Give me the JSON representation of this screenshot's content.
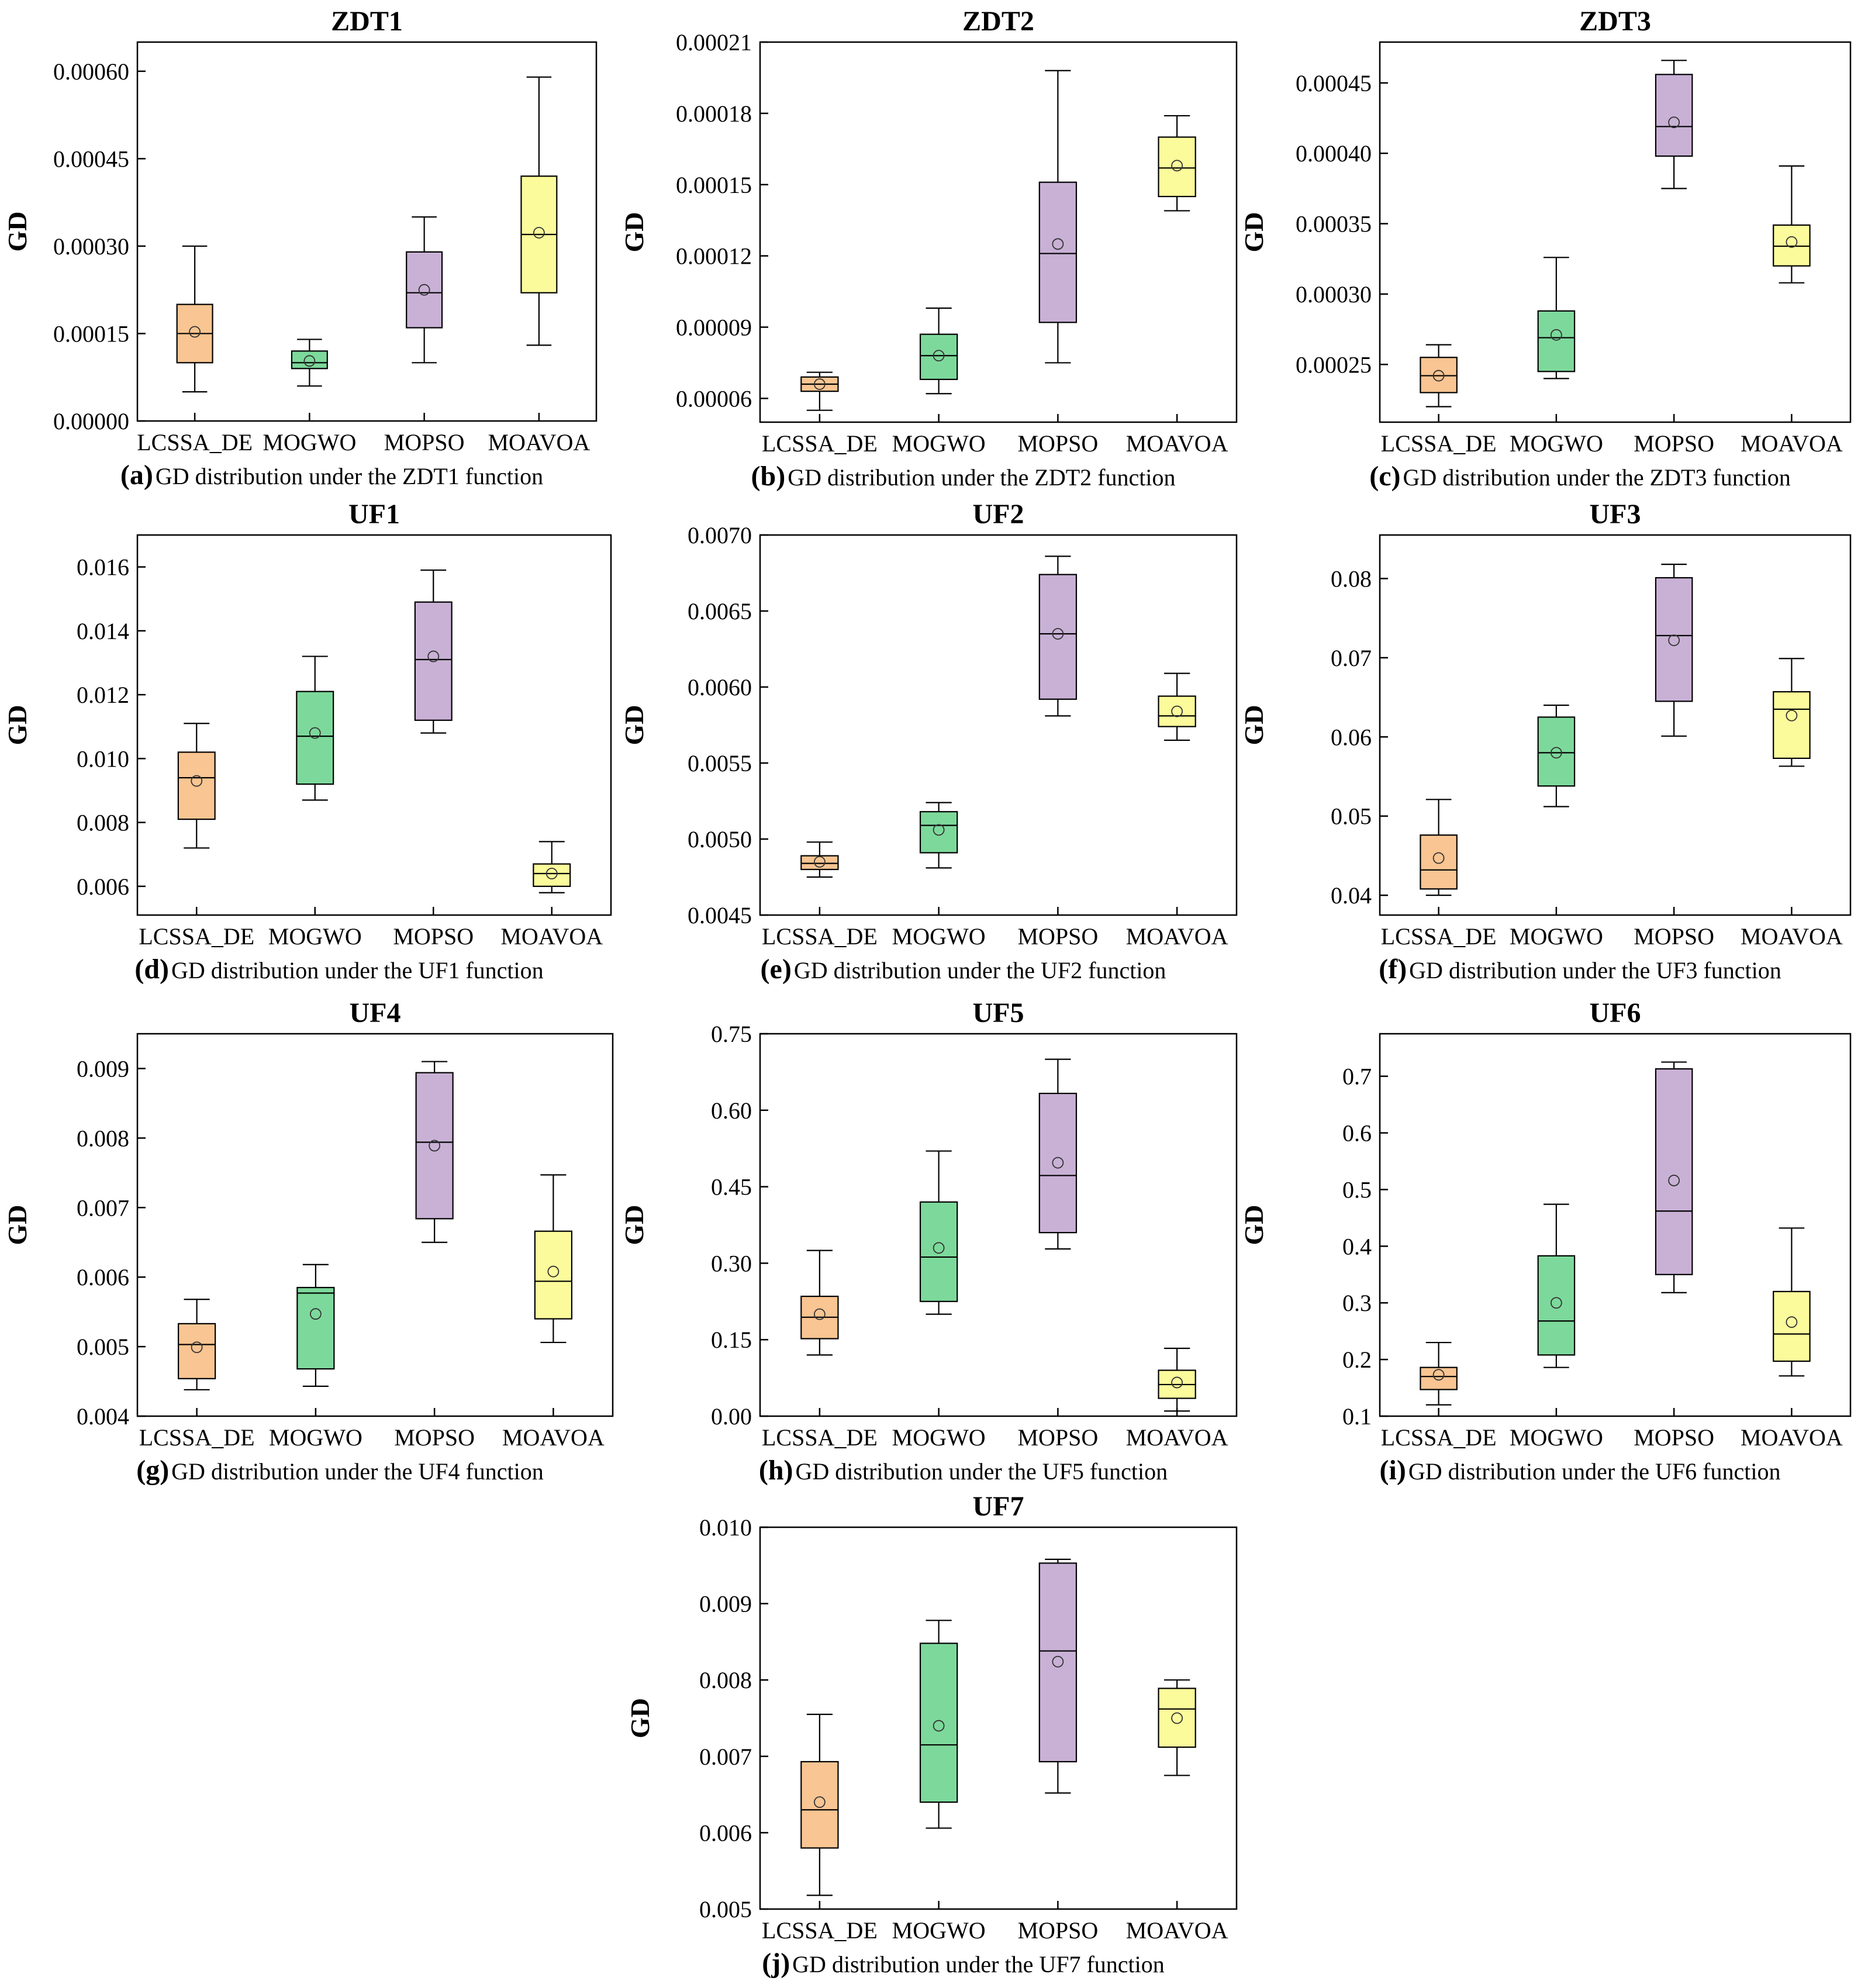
{
  "colors": {
    "LCSSA_DE": "#F9C592",
    "MOGWO": "#7DD99B",
    "MOPSO": "#C9B1D6",
    "MOAVOA": "#FBFB9C"
  },
  "chart_data": [
    {
      "type": "box",
      "title": "ZDT1",
      "ylabel": "GD",
      "caption_letter": "(a)",
      "caption_text": "GD distribution under the ZDT1 function",
      "categories": [
        "LCSSA_DE",
        "MOGWO",
        "MOPSO",
        "MOAVOA"
      ],
      "ylim": [
        0,
        0.00065
      ],
      "yticks": [
        0,
        0.00015,
        0.0003,
        0.00045,
        0.0006
      ],
      "ytick_labels": [
        "0.00000",
        "0.00015",
        "0.00030",
        "0.00045",
        "0.00060"
      ],
      "boxes": [
        {
          "min": 5e-05,
          "q1": 0.0001,
          "median": 0.00015,
          "q3": 0.0002,
          "max": 0.0003,
          "mean": 0.000153
        },
        {
          "min": 6e-05,
          "q1": 9e-05,
          "median": 0.0001,
          "q3": 0.00012,
          "max": 0.00014,
          "mean": 0.000103
        },
        {
          "min": 0.0001,
          "q1": 0.00016,
          "median": 0.00022,
          "q3": 0.00029,
          "max": 0.00035,
          "mean": 0.000225
        },
        {
          "min": 0.00013,
          "q1": 0.00022,
          "median": 0.00032,
          "q3": 0.00042,
          "max": 0.00059,
          "mean": 0.000323
        }
      ]
    },
    {
      "type": "box",
      "title": "ZDT2",
      "ylabel": "GD",
      "caption_letter": "(b)",
      "caption_text": "GD distribution under the ZDT2 function",
      "categories": [
        "LCSSA_DE",
        "MOGWO",
        "MOPSO",
        "MOAVOA"
      ],
      "ylim": [
        5e-05,
        0.00021
      ],
      "yticks": [
        6e-05,
        9e-05,
        0.00012,
        0.00015,
        0.00018,
        0.00021
      ],
      "ytick_labels": [
        "0.00006",
        "0.00009",
        "0.00012",
        "0.00015",
        "0.00018",
        "0.00021"
      ],
      "boxes": [
        {
          "min": 5.5e-05,
          "q1": 6.3e-05,
          "median": 6.6e-05,
          "q3": 6.9e-05,
          "max": 7.1e-05,
          "mean": 6.6e-05
        },
        {
          "min": 6.2e-05,
          "q1": 6.8e-05,
          "median": 7.8e-05,
          "q3": 8.7e-05,
          "max": 9.8e-05,
          "mean": 7.8e-05
        },
        {
          "min": 7.5e-05,
          "q1": 9.2e-05,
          "median": 0.000121,
          "q3": 0.000151,
          "max": 0.000198,
          "mean": 0.000125
        },
        {
          "min": 0.000139,
          "q1": 0.000145,
          "median": 0.000157,
          "q3": 0.00017,
          "max": 0.000179,
          "mean": 0.000158
        }
      ]
    },
    {
      "type": "box",
      "title": "ZDT3",
      "ylabel": "GD",
      "caption_letter": "(c)",
      "caption_text": "GD distribution under the ZDT3 function",
      "categories": [
        "LCSSA_DE",
        "MOGWO",
        "MOPSO",
        "MOAVOA"
      ],
      "ylim": [
        0.000209,
        0.000479
      ],
      "yticks": [
        0.00025,
        0.0003,
        0.00035,
        0.0004,
        0.00045
      ],
      "ytick_labels": [
        "0.00025",
        "0.00030",
        "0.00035",
        "0.00040",
        "0.00045"
      ],
      "boxes": [
        {
          "min": 0.00022,
          "q1": 0.00023,
          "median": 0.000242,
          "q3": 0.000255,
          "max": 0.000264,
          "mean": 0.000242
        },
        {
          "min": 0.00024,
          "q1": 0.000245,
          "median": 0.000269,
          "q3": 0.000288,
          "max": 0.000326,
          "mean": 0.000271
        },
        {
          "min": 0.000375,
          "q1": 0.000398,
          "median": 0.000419,
          "q3": 0.000456,
          "max": 0.000466,
          "mean": 0.000422
        },
        {
          "min": 0.000308,
          "q1": 0.00032,
          "median": 0.000334,
          "q3": 0.000349,
          "max": 0.000391,
          "mean": 0.000337
        }
      ]
    },
    {
      "type": "box",
      "title": "UF1",
      "ylabel": "GD",
      "caption_letter": "(d)",
      "caption_text": "GD distribution under the UF1 function",
      "categories": [
        "LCSSA_DE",
        "MOGWO",
        "MOPSO",
        "MOAVOA"
      ],
      "ylim": [
        0.0051,
        0.017
      ],
      "yticks": [
        0.006,
        0.008,
        0.01,
        0.012,
        0.014,
        0.016
      ],
      "ytick_labels": [
        "0.006",
        "0.008",
        "0.010",
        "0.012",
        "0.014",
        "0.016"
      ],
      "boxes": [
        {
          "min": 0.0072,
          "q1": 0.0081,
          "median": 0.0094,
          "q3": 0.0102,
          "max": 0.0111,
          "mean": 0.0093
        },
        {
          "min": 0.0087,
          "q1": 0.0092,
          "median": 0.0107,
          "q3": 0.0121,
          "max": 0.0132,
          "mean": 0.0108
        },
        {
          "min": 0.0108,
          "q1": 0.0112,
          "median": 0.0131,
          "q3": 0.0149,
          "max": 0.0159,
          "mean": 0.0132
        },
        {
          "min": 0.0058,
          "q1": 0.006,
          "median": 0.0064,
          "q3": 0.0067,
          "max": 0.0074,
          "mean": 0.0064
        }
      ]
    },
    {
      "type": "box",
      "title": "UF2",
      "ylabel": "GD",
      "caption_letter": "(e)",
      "caption_text": "GD distribution under the UF2 function",
      "categories": [
        "LCSSA_DE",
        "MOGWO",
        "MOPSO",
        "MOAVOA"
      ],
      "ylim": [
        0.0045,
        0.007
      ],
      "yticks": [
        0.0045,
        0.005,
        0.0055,
        0.006,
        0.0065,
        0.007
      ],
      "ytick_labels": [
        "0.0045",
        "0.0050",
        "0.0055",
        "0.0060",
        "0.0065",
        "0.0070"
      ],
      "boxes": [
        {
          "min": 0.00475,
          "q1": 0.0048,
          "median": 0.00484,
          "q3": 0.00489,
          "max": 0.00498,
          "mean": 0.00485
        },
        {
          "min": 0.00481,
          "q1": 0.00491,
          "median": 0.00509,
          "q3": 0.00518,
          "max": 0.00524,
          "mean": 0.00506
        },
        {
          "min": 0.00581,
          "q1": 0.00592,
          "median": 0.00635,
          "q3": 0.00674,
          "max": 0.00686,
          "mean": 0.00635
        },
        {
          "min": 0.00565,
          "q1": 0.00574,
          "median": 0.00581,
          "q3": 0.00594,
          "max": 0.00609,
          "mean": 0.00584
        }
      ]
    },
    {
      "type": "box",
      "title": "UF3",
      "ylabel": "GD",
      "caption_letter": "(f)",
      "caption_text": "GD distribution under the UF3 function",
      "categories": [
        "LCSSA_DE",
        "MOGWO",
        "MOPSO",
        "MOAVOA"
      ],
      "ylim": [
        0.0375,
        0.0855
      ],
      "yticks": [
        0.04,
        0.05,
        0.06,
        0.07,
        0.08
      ],
      "ytick_labels": [
        "0.04",
        "0.05",
        "0.06",
        "0.07",
        "0.08"
      ],
      "boxes": [
        {
          "min": 0.04,
          "q1": 0.0408,
          "median": 0.0432,
          "q3": 0.0476,
          "max": 0.0521,
          "mean": 0.0447
        },
        {
          "min": 0.0512,
          "q1": 0.0538,
          "median": 0.058,
          "q3": 0.0625,
          "max": 0.064,
          "mean": 0.058
        },
        {
          "min": 0.0601,
          "q1": 0.0645,
          "median": 0.0728,
          "q3": 0.0801,
          "max": 0.0818,
          "mean": 0.0722
        },
        {
          "min": 0.0563,
          "q1": 0.0573,
          "median": 0.0635,
          "q3": 0.0657,
          "max": 0.0699,
          "mean": 0.0627
        }
      ]
    },
    {
      "type": "box",
      "title": "UF4",
      "ylabel": "GD",
      "caption_letter": "(g)",
      "caption_text": "GD distribution under the UF4 function",
      "categories": [
        "LCSSA_DE",
        "MOGWO",
        "MOPSO",
        "MOAVOA"
      ],
      "ylim": [
        0.004,
        0.0095
      ],
      "yticks": [
        0.004,
        0.005,
        0.006,
        0.007,
        0.008,
        0.009
      ],
      "ytick_labels": [
        "0.004",
        "0.005",
        "0.006",
        "0.007",
        "0.008",
        "0.009"
      ],
      "boxes": [
        {
          "min": 0.00438,
          "q1": 0.00454,
          "median": 0.00503,
          "q3": 0.00533,
          "max": 0.00568,
          "mean": 0.00499
        },
        {
          "min": 0.00443,
          "q1": 0.00468,
          "median": 0.00577,
          "q3": 0.00585,
          "max": 0.00618,
          "mean": 0.00547
        },
        {
          "min": 0.0065,
          "q1": 0.00684,
          "median": 0.00794,
          "q3": 0.00894,
          "max": 0.0091,
          "mean": 0.00789
        },
        {
          "min": 0.00506,
          "q1": 0.0054,
          "median": 0.00594,
          "q3": 0.00666,
          "max": 0.00747,
          "mean": 0.00608
        }
      ]
    },
    {
      "type": "box",
      "title": "UF5",
      "ylabel": "GD",
      "caption_letter": "(h)",
      "caption_text": "GD distribution under the UF5 function",
      "categories": [
        "LCSSA_DE",
        "MOGWO",
        "MOPSO",
        "MOAVOA"
      ],
      "ylim": [
        0,
        0.75
      ],
      "yticks": [
        0,
        0.15,
        0.3,
        0.45,
        0.6,
        0.75
      ],
      "ytick_labels": [
        "0.00",
        "0.15",
        "0.30",
        "0.45",
        "0.60",
        "0.75"
      ],
      "boxes": [
        {
          "min": 0.12,
          "q1": 0.152,
          "median": 0.194,
          "q3": 0.235,
          "max": 0.325,
          "mean": 0.2
        },
        {
          "min": 0.2,
          "q1": 0.225,
          "median": 0.312,
          "q3": 0.42,
          "max": 0.52,
          "mean": 0.33
        },
        {
          "min": 0.328,
          "q1": 0.36,
          "median": 0.472,
          "q3": 0.633,
          "max": 0.7,
          "mean": 0.497
        },
        {
          "min": 0.01,
          "q1": 0.035,
          "median": 0.062,
          "q3": 0.09,
          "max": 0.133,
          "mean": 0.066
        }
      ]
    },
    {
      "type": "box",
      "title": "UF6",
      "ylabel": "GD",
      "caption_letter": "(i)",
      "caption_text": "GD distribution under the UF6 function",
      "categories": [
        "LCSSA_DE",
        "MOGWO",
        "MOPSO",
        "MOAVOA"
      ],
      "ylim": [
        0.1,
        0.775
      ],
      "yticks": [
        0.1,
        0.2,
        0.3,
        0.4,
        0.5,
        0.6,
        0.7
      ],
      "ytick_labels": [
        "0.1",
        "0.2",
        "0.3",
        "0.4",
        "0.5",
        "0.6",
        "0.7"
      ],
      "boxes": [
        {
          "min": 0.12,
          "q1": 0.147,
          "median": 0.17,
          "q3": 0.186,
          "max": 0.23,
          "mean": 0.173
        },
        {
          "min": 0.186,
          "q1": 0.208,
          "median": 0.268,
          "q3": 0.383,
          "max": 0.474,
          "mean": 0.3
        },
        {
          "min": 0.318,
          "q1": 0.35,
          "median": 0.462,
          "q3": 0.713,
          "max": 0.725,
          "mean": 0.516
        },
        {
          "min": 0.171,
          "q1": 0.197,
          "median": 0.245,
          "q3": 0.32,
          "max": 0.432,
          "mean": 0.266
        }
      ]
    },
    {
      "type": "box",
      "title": "UF7",
      "ylabel": "GD",
      "caption_letter": "(j)",
      "caption_text": "GD distribution under the UF7 function",
      "categories": [
        "LCSSA_DE",
        "MOGWO",
        "MOPSO",
        "MOAVOA"
      ],
      "ylim": [
        0.005,
        0.01
      ],
      "yticks": [
        0.005,
        0.006,
        0.007,
        0.008,
        0.009,
        0.01
      ],
      "ytick_labels": [
        "0.005",
        "0.006",
        "0.007",
        "0.008",
        "0.009",
        "0.010"
      ],
      "boxes": [
        {
          "min": 0.00518,
          "q1": 0.0058,
          "median": 0.0063,
          "q3": 0.00693,
          "max": 0.00755,
          "mean": 0.0064
        },
        {
          "min": 0.00606,
          "q1": 0.0064,
          "median": 0.00715,
          "q3": 0.00848,
          "max": 0.00878,
          "mean": 0.0074
        },
        {
          "min": 0.00652,
          "q1": 0.00693,
          "median": 0.00838,
          "q3": 0.00953,
          "max": 0.00958,
          "mean": 0.00824
        },
        {
          "min": 0.00675,
          "q1": 0.00712,
          "median": 0.00762,
          "q3": 0.00789,
          "max": 0.008,
          "mean": 0.0075
        }
      ]
    }
  ]
}
